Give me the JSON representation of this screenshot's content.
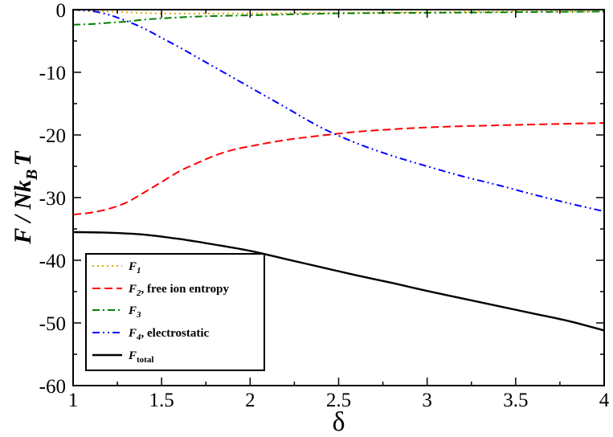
{
  "chart_data": {
    "type": "line",
    "xlabel": "δ",
    "ylabel": {
      "main": "F / Nk",
      "sub": "B",
      "tail": "T"
    },
    "xlim": [
      1,
      4
    ],
    "ylim": [
      -60,
      0
    ],
    "xticks": [
      "1",
      "1.5",
      "2",
      "2.5",
      "3",
      "3.5",
      "4"
    ],
    "yticks": [
      "0",
      "-10",
      "-20",
      "-30",
      "-40",
      "-50",
      "-60"
    ],
    "grid": false,
    "legend_position": "bottom-left",
    "series": [
      {
        "name": "F1",
        "label": {
          "main": "F",
          "sub": "1",
          "tail": ""
        },
        "color": "#e6a400",
        "dash": "dotted",
        "x": [
          1.0,
          1.2,
          1.5,
          2.0,
          2.5,
          3.0,
          3.5,
          4.0
        ],
        "y": [
          -0.1,
          -0.3,
          -0.6,
          -0.6,
          -0.5,
          -0.4,
          -0.3,
          -0.3
        ]
      },
      {
        "name": "F2",
        "label": {
          "main": "F",
          "sub": "2",
          "tail": ", free ion entropy"
        },
        "color": "#ff0000",
        "dash": "dashed",
        "x": [
          1.0,
          1.1,
          1.2,
          1.3,
          1.4,
          1.5,
          1.6,
          1.7,
          1.8,
          1.9,
          2.0,
          2.2,
          2.4,
          2.6,
          2.8,
          3.0,
          3.2,
          3.5,
          3.8,
          4.0
        ],
        "y": [
          -32.7,
          -32.4,
          -31.8,
          -30.8,
          -29.2,
          -27.5,
          -25.8,
          -24.5,
          -23.3,
          -22.4,
          -21.8,
          -20.8,
          -20.1,
          -19.5,
          -19.1,
          -18.8,
          -18.6,
          -18.4,
          -18.2,
          -18.1
        ]
      },
      {
        "name": "F3",
        "label": {
          "main": "F",
          "sub": "3",
          "tail": ""
        },
        "color": "#008000",
        "dash": "dashdot",
        "x": [
          1.0,
          1.1,
          1.2,
          1.3,
          1.4,
          1.5,
          1.7,
          2.0,
          2.5,
          3.0,
          3.5,
          4.0
        ],
        "y": [
          -2.4,
          -2.3,
          -2.1,
          -1.9,
          -1.6,
          -1.4,
          -1.1,
          -0.9,
          -0.6,
          -0.5,
          -0.4,
          -0.3
        ]
      },
      {
        "name": "F4",
        "label": {
          "main": "F",
          "sub": "4",
          "tail": ",  electrostatic"
        },
        "color": "#0000ff",
        "dash": "dashdotdot",
        "x": [
          1.0,
          1.1,
          1.2,
          1.3,
          1.4,
          1.5,
          1.6,
          1.7,
          1.8,
          1.9,
          2.0,
          2.2,
          2.4,
          2.6,
          2.8,
          3.0,
          3.2,
          3.4,
          3.6,
          3.8,
          4.0
        ],
        "y": [
          0.0,
          -0.2,
          -0.8,
          -1.8,
          -3.0,
          -4.5,
          -6.0,
          -7.6,
          -9.2,
          -10.8,
          -12.4,
          -15.6,
          -18.8,
          -21.3,
          -23.3,
          -25.0,
          -26.6,
          -28.0,
          -29.5,
          -30.9,
          -32.2
        ]
      },
      {
        "name": "Ftotal",
        "label": {
          "main": "F",
          "sub": "total",
          "tail": ""
        },
        "color": "#000000",
        "dash": "solid",
        "x": [
          1.0,
          1.2,
          1.4,
          1.6,
          1.8,
          2.0,
          2.2,
          2.4,
          2.6,
          2.8,
          3.0,
          3.2,
          3.4,
          3.6,
          3.8,
          4.0
        ],
        "y": [
          -35.5,
          -35.6,
          -35.9,
          -36.6,
          -37.5,
          -38.5,
          -39.8,
          -41.1,
          -42.4,
          -43.6,
          -44.9,
          -46.1,
          -47.3,
          -48.5,
          -49.7,
          -51.2
        ]
      }
    ]
  }
}
